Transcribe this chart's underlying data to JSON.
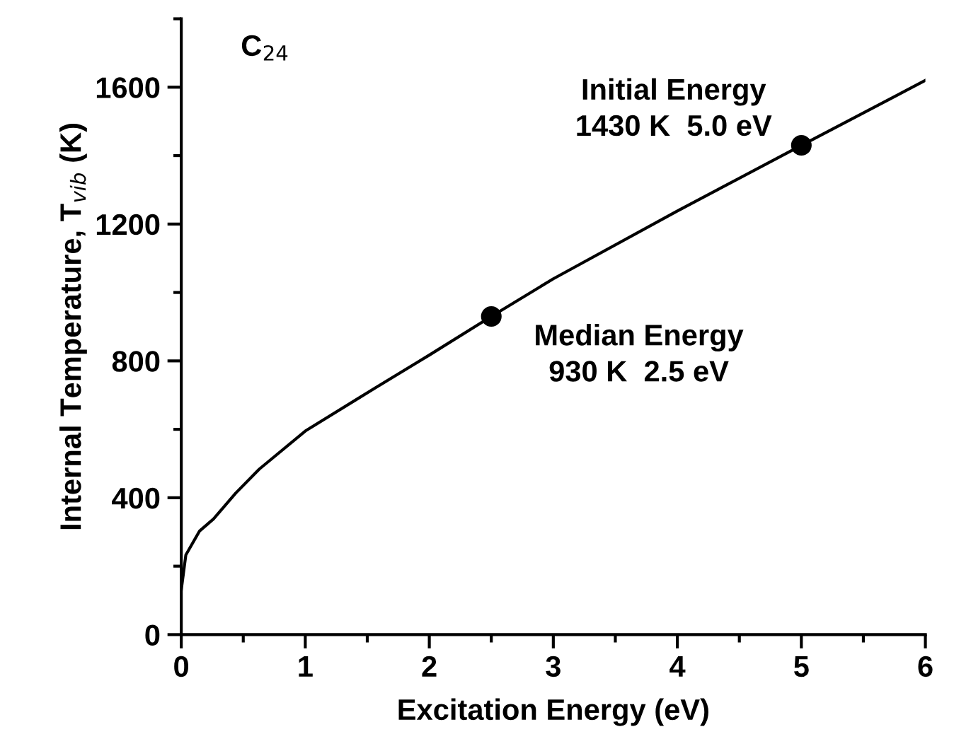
{
  "chart_data": {
    "type": "line",
    "xlabel": "Excitation Energy (eV)",
    "ylabel": "Internal Temperature, T$_{vib}$ (K)",
    "xlim": [
      0,
      6
    ],
    "xticks": [
      0,
      1,
      2,
      3,
      4,
      5,
      6
    ],
    "ylim": [
      0,
      1800
    ],
    "yticks": [
      0,
      400,
      800,
      1200,
      1600
    ],
    "grid": false,
    "legend": false,
    "series": [
      {
        "color": "#000000",
        "x": [
          0,
          0.037,
          0.148,
          0.26,
          0.44,
          0.63,
          1.0,
          1.56,
          2.0,
          2.5,
          3.0,
          4.0,
          5.0,
          6.0
        ],
        "values": [
          130,
          233,
          303,
          338,
          414,
          484,
          595,
          720,
          817,
          930,
          1040,
          1238,
          1430,
          1620
        ],
        "marker": "none",
        "line_style": "solid"
      },
      {
        "type": "scatter",
        "color": "#000000",
        "x": [
          2.5,
          5.0
        ],
        "values": [
          930,
          1430
        ],
        "marker": "circle"
      }
    ],
    "annotations": [
      {
        "text": "Median Energy\n930 K  2.5 eV",
        "x": 2.5,
        "y": 930
      },
      {
        "text": "Initial Energy\n1430 K  5.0 eV",
        "x": 5.0,
        "y": 1430
      },
      "C$_{24}$"
    ]
  }
}
